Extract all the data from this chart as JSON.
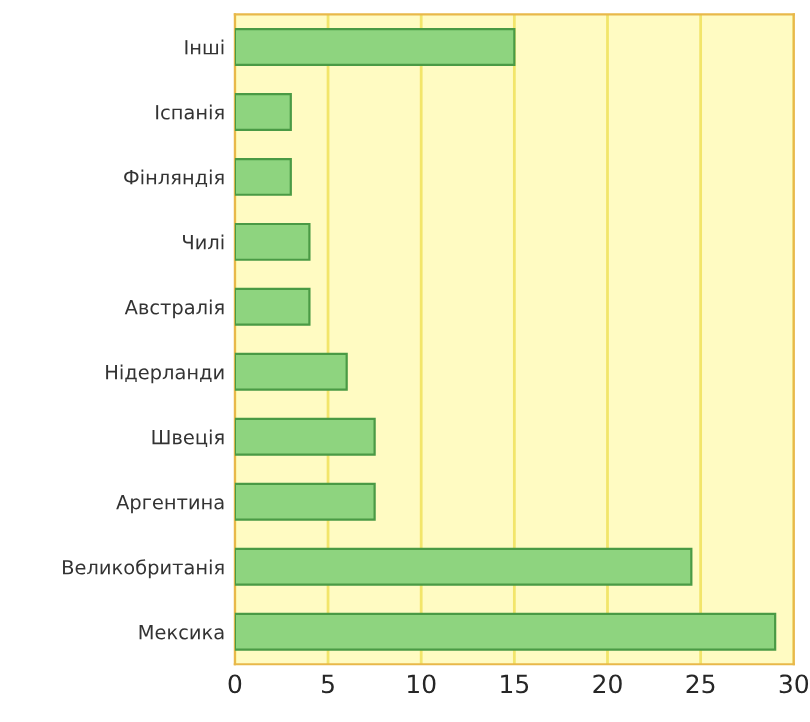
{
  "chart_data": {
    "type": "bar",
    "orientation": "horizontal",
    "categories": [
      "Інші",
      "Іспанія",
      "Фінляндія",
      "Чилі",
      "Австралія",
      "Нідерланди",
      "Швеція",
      "Аргентина",
      "Великобританія",
      "Мексика"
    ],
    "values": [
      15,
      3,
      3,
      4,
      4,
      6,
      7.5,
      7.5,
      24.5,
      29
    ],
    "color": "#8ed47f",
    "xlim": [
      0,
      30
    ],
    "xticks": [
      0,
      5,
      10,
      15,
      20,
      25,
      30
    ],
    "grid": "x"
  }
}
